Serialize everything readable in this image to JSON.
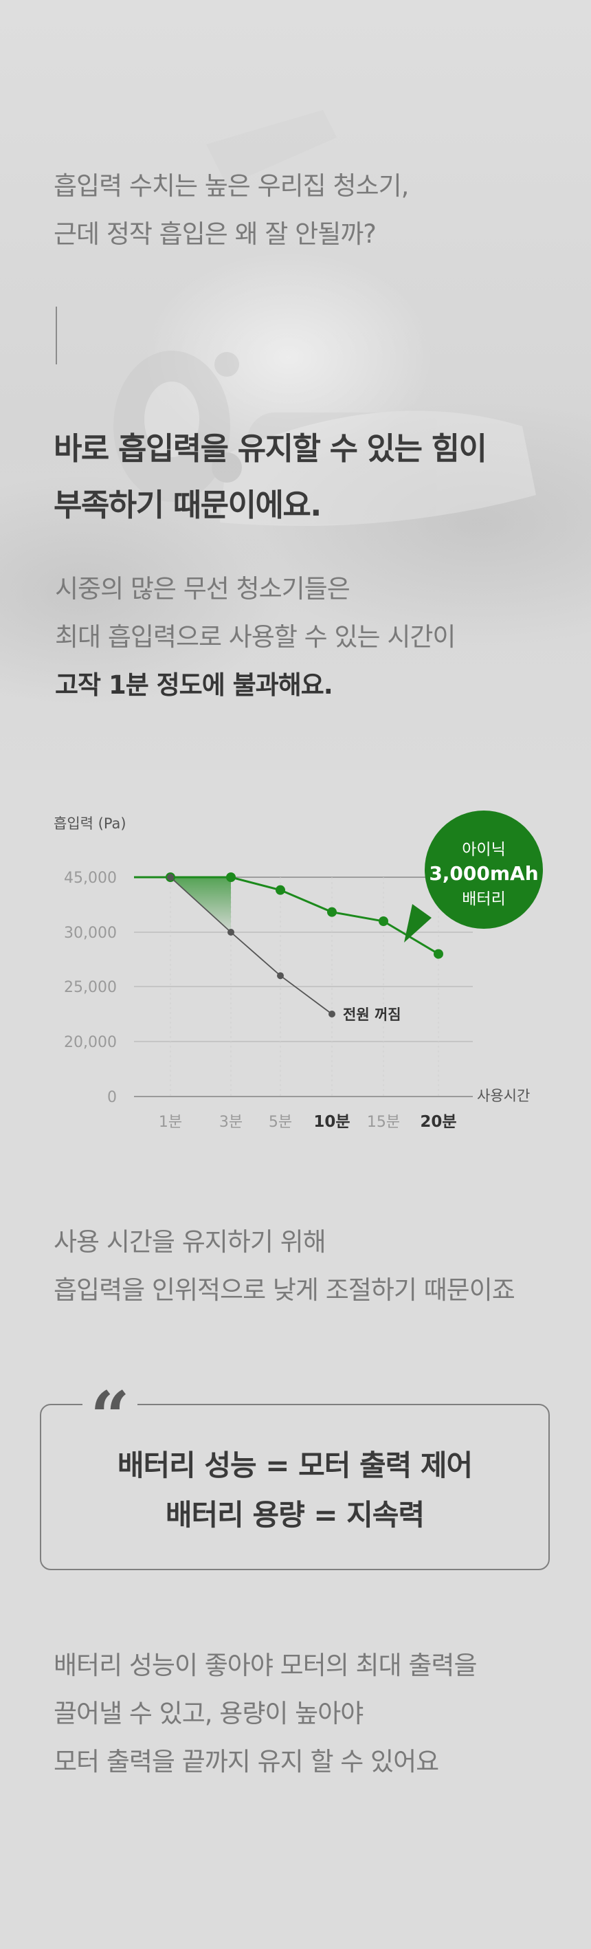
{
  "intro": {
    "lines": [
      "흡입력 수치는 높은 우리집 청소기,",
      "근데 정작 흡입은 왜 잘 안될까?"
    ]
  },
  "headline": {
    "lines": [
      "바로 흡입력을 유지할 수 있는 힘이",
      "부족하기 때문이에요."
    ]
  },
  "sub": {
    "lines": [
      "시중의 많은 무선 청소기들은",
      "최대 흡입력으로 사용할 수 있는 시간이"
    ],
    "strong_line": "고작 1분 정도에 불과해요."
  },
  "chart_data": {
    "type": "line",
    "ylabel": "흡입력 (Pa)",
    "xlabel": "사용시간",
    "y_ticks": [
      "45,000",
      "30,000",
      "25,000",
      "20,000",
      "0"
    ],
    "x_ticks": [
      "1분",
      "3분",
      "5분",
      "10분",
      "15분",
      "20분"
    ],
    "x_ticks_emphasized": [
      "10분",
      "20분"
    ],
    "series": [
      {
        "values": [
          45000,
          45000,
          41500,
          35500,
          33000,
          28000
        ],
        "color": "#1c8a1c"
      },
      {
        "values": [
          45000,
          30000,
          26000,
          22500
        ],
        "end_annotation": "전원 꺼짐",
        "color": "#555555"
      }
    ],
    "badge": {
      "line1": "아이닉",
      "line2": "3,000mAh",
      "line3": "배터리",
      "color": "#1b7f1b"
    },
    "grid": true
  },
  "middle": {
    "lines": [
      "사용 시간을 유지하기 위해",
      "흡입력을 인위적으로 낮게 조절하기 때문이죠"
    ]
  },
  "quote": {
    "mark": "“",
    "line1": "배터리 성능 = 모터 출력 제어",
    "line2": "배터리 용량 = 지속력"
  },
  "closing": {
    "lines": [
      "배터리 성능이 좋아야 모터의 최대 출력을",
      "끌어낼 수 있고, 용량이 높아야",
      "모터 출력을 끝까지 유지 할 수 있어요"
    ]
  },
  "colors": {
    "background": "#dcdcdc",
    "accent_green": "#1c8a1c",
    "text_gray": "#7a7a7a",
    "text_dark": "#3a3a3a"
  }
}
